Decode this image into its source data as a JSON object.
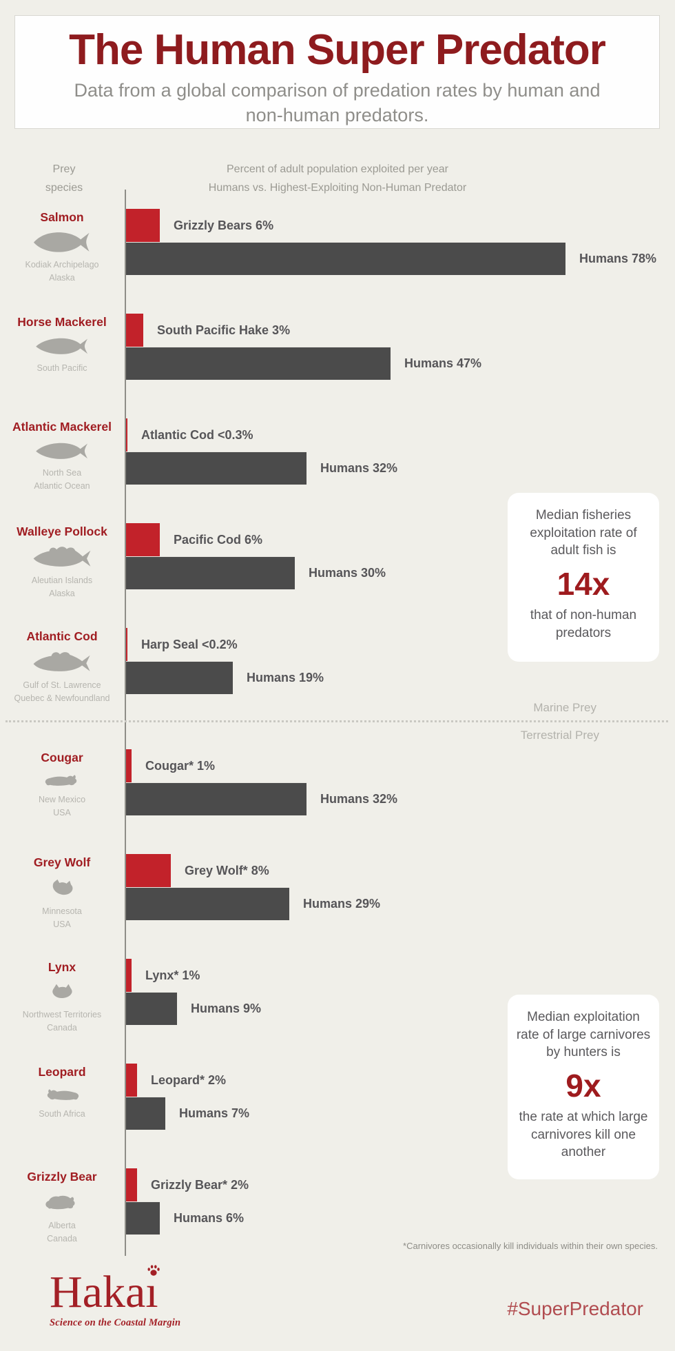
{
  "header": {
    "title": "The Human Super Predator",
    "subtitle_line1": "Data from a global comparison of predation rates by human and",
    "subtitle_line2": "non-human predators."
  },
  "columns": {
    "prey_line1": "Prey",
    "prey_line2": "species",
    "axis_line1": "Percent of adult population exploited per year",
    "axis_line2": "Humans vs. Highest-Exploiting Non-Human Predator"
  },
  "divider": {
    "above": "Marine Prey",
    "below": "Terrestrial Prey"
  },
  "callouts": [
    {
      "pre": "Median fisheries exploitation rate of adult fish is",
      "big": "14x",
      "post": "that of non-human predators"
    },
    {
      "pre": "Median exploitation rate of large carnivores by hunters is",
      "big": "9x",
      "post": "the rate at which large carnivores kill one another"
    }
  ],
  "footnote": "*Carnivores occasionally kill individuals within their own species.",
  "footer": {
    "logo": "Hakaı",
    "tagline": "Science on the Coastal Margin",
    "hashtag": "#SuperPredator"
  },
  "colors": {
    "background": "#f0efe9",
    "accent_maroon": "#8e1b1e",
    "predator_bar_red": "#c2222a",
    "humans_bar_dark": "#4b4b4b",
    "species_name_red": "#a01d22",
    "muted_gray": "#9b9a93",
    "icon_gray": "#a9a8a3"
  },
  "chart_data": {
    "type": "bar",
    "title": "Percent of adult population exploited per year",
    "subtitle": "Humans vs. Highest-Exploiting Non-Human Predator",
    "unit": "percent of adult population exploited per year",
    "xlim": [
      0,
      80
    ],
    "groups": [
      {
        "species": "Salmon",
        "icon": "salmon",
        "location": [
          "Kodiak Archipelago",
          "Alaska"
        ],
        "section": "marine",
        "predator_label": "Grizzly Bears 6%",
        "predator_value": 6,
        "humans_label": "Humans 78%",
        "humans_value": 78
      },
      {
        "species": "Horse Mackerel",
        "icon": "mackerel",
        "location": [
          "South Pacific"
        ],
        "section": "marine",
        "predator_label": "South Pacific Hake 3%",
        "predator_value": 3,
        "humans_label": "Humans 47%",
        "humans_value": 47
      },
      {
        "species": "Atlantic Mackerel",
        "icon": "mackerel",
        "location": [
          "North Sea",
          "Atlantic Ocean"
        ],
        "section": "marine",
        "predator_label": "Atlantic Cod <0.3%",
        "predator_value": 0.3,
        "humans_label": "Humans 32%",
        "humans_value": 32
      },
      {
        "species": "Walleye Pollock",
        "icon": "pollock",
        "location": [
          "Aleutian Islands",
          "Alaska"
        ],
        "section": "marine",
        "predator_label": "Pacific Cod 6%",
        "predator_value": 6,
        "humans_label": "Humans 30%",
        "humans_value": 30
      },
      {
        "species": "Atlantic Cod",
        "icon": "cod",
        "location": [
          "Gulf of St. Lawrence",
          "Quebec & Newfoundland"
        ],
        "section": "marine",
        "predator_label": "Harp Seal <0.2%",
        "predator_value": 0.2,
        "humans_label": "Humans 19%",
        "humans_value": 19
      },
      {
        "species": "Cougar",
        "icon": "cougar",
        "location": [
          "New Mexico",
          "USA"
        ],
        "section": "terrestrial",
        "predator_label": "Cougar* 1%",
        "predator_value": 1,
        "humans_label": "Humans 32%",
        "humans_value": 32
      },
      {
        "species": "Grey Wolf",
        "icon": "wolf",
        "location": [
          "Minnesota",
          "USA"
        ],
        "section": "terrestrial",
        "predator_label": "Grey Wolf* 8%",
        "predator_value": 8,
        "humans_label": "Humans 29%",
        "humans_value": 29
      },
      {
        "species": "Lynx",
        "icon": "lynx",
        "location": [
          "Northwest Territories",
          "Canada"
        ],
        "section": "terrestrial",
        "predator_label": "Lynx* 1%",
        "predator_value": 1,
        "humans_label": "Humans 9%",
        "humans_value": 9
      },
      {
        "species": "Leopard",
        "icon": "leopard",
        "location": [
          "South Africa"
        ],
        "section": "terrestrial",
        "predator_label": "Leopard* 2%",
        "predator_value": 2,
        "humans_label": "Humans 7%",
        "humans_value": 7
      },
      {
        "species": "Grizzly Bear",
        "icon": "bear",
        "location": [
          "Alberta",
          "Canada"
        ],
        "section": "terrestrial",
        "predator_label": "Grizzly Bear* 2%",
        "predator_value": 2,
        "humans_label": "Humans 6%",
        "humans_value": 6
      }
    ]
  }
}
